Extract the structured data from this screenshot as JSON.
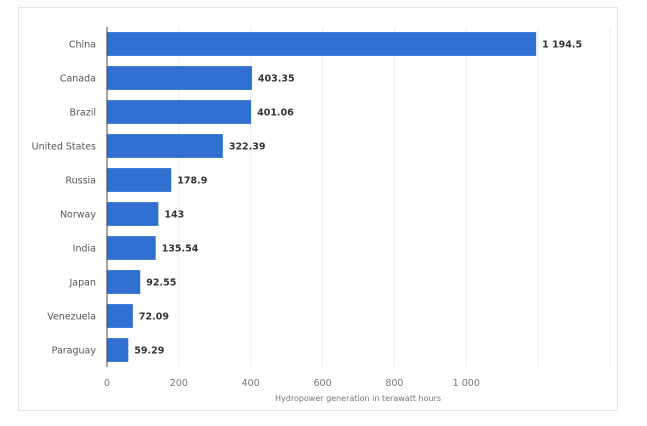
{
  "chart_data": {
    "type": "bar",
    "orientation": "horizontal",
    "title": "",
    "xlabel": "Hydropower generation in terawatt hours",
    "ylabel": "",
    "categories": [
      "China",
      "Canada",
      "Brazil",
      "United States",
      "Russia",
      "Norway",
      "India",
      "Japan",
      "Venezuela",
      "Paraguay"
    ],
    "values": [
      1194.5,
      403.35,
      401.06,
      322.39,
      178.9,
      143,
      135.54,
      92.55,
      72.09,
      59.29
    ],
    "value_labels": [
      "1 194.5",
      "403.35",
      "401.06",
      "322.39",
      "178.9",
      "143",
      "135.54",
      "92.55",
      "72.09",
      "59.29"
    ],
    "xlim": [
      0,
      1400
    ],
    "ticks": [
      0,
      200,
      400,
      600,
      800,
      1000
    ],
    "tick_labels": [
      "0",
      "200",
      "400",
      "600",
      "800",
      "1 000"
    ],
    "gridlines": [
      200,
      400,
      600,
      800,
      1000,
      1200,
      1400
    ],
    "grid": true,
    "legend": "none",
    "bar_color": "#2f6fd0"
  }
}
